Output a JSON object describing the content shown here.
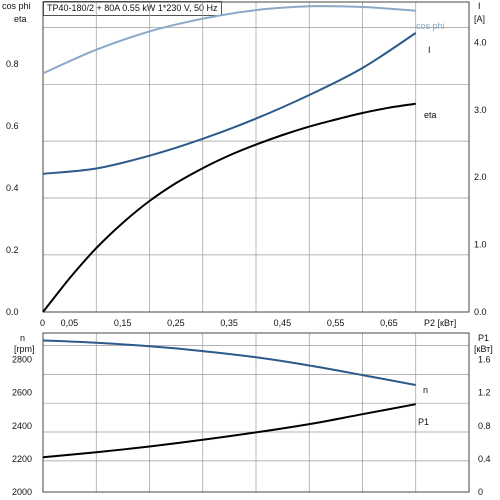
{
  "title": "TP40-180/2 + 80A   0.55 kW   1*230 V, 50 Hz",
  "colors": {
    "cos_phi": "#8aa9c8",
    "current": "#2c5a8a",
    "eta": "#000000",
    "speed": "#2c5a8a",
    "power": "#000000",
    "grid": "#9a9a9a"
  },
  "chart_data": [
    {
      "type": "line",
      "x_label": "P2 [кВт]",
      "x_ticks": [
        0,
        0.05,
        0.15,
        0.25,
        0.35,
        0.45,
        0.55,
        0.65
      ],
      "x_tick_labels": [
        "0",
        "0,05",
        "0,15",
        "0,25",
        "0,35",
        "0,45",
        "0,55",
        "0,65"
      ],
      "xlim": [
        0,
        0.8
      ],
      "left_axis": {
        "labels": [
          "cos phi",
          "eta"
        ],
        "ticks": [
          0,
          0.2,
          0.4,
          0.6,
          0.8
        ],
        "tick_labels": [
          "0.0",
          "0.2",
          "0.4",
          "0.6",
          "0.8"
        ],
        "ylim": [
          0,
          1.0
        ]
      },
      "right_axis": {
        "labels": [
          "I",
          "[A]"
        ],
        "ticks": [
          0,
          1,
          2,
          3,
          4
        ],
        "tick_labels": [
          "0.0",
          "1.0",
          "2.0",
          "3.0",
          "4.0"
        ],
        "ylim": [
          0,
          4.6
        ]
      },
      "series": [
        {
          "name": "cos phi",
          "axis": "left",
          "x": [
            0,
            0.1,
            0.2,
            0.3,
            0.4,
            0.5,
            0.6,
            0.7
          ],
          "y": [
            0.77,
            0.846,
            0.905,
            0.946,
            0.974,
            0.986,
            0.984,
            0.972
          ]
        },
        {
          "name": "I",
          "axis": "right",
          "x": [
            0,
            0.1,
            0.2,
            0.3,
            0.4,
            0.5,
            0.6,
            0.7
          ],
          "y": [
            2.05,
            2.13,
            2.32,
            2.57,
            2.87,
            3.22,
            3.62,
            4.14
          ]
        },
        {
          "name": "eta",
          "axis": "left",
          "x": [
            0,
            0.05,
            0.1,
            0.15,
            0.2,
            0.25,
            0.3,
            0.35,
            0.4,
            0.45,
            0.5,
            0.55,
            0.6,
            0.65,
            0.7
          ],
          "y": [
            0,
            0.109,
            0.206,
            0.288,
            0.358,
            0.416,
            0.464,
            0.505,
            0.54,
            0.571,
            0.598,
            0.621,
            0.642,
            0.659,
            0.672
          ]
        }
      ]
    },
    {
      "type": "line",
      "left_axis": {
        "labels": [
          "n",
          "[rpm]"
        ],
        "ticks": [
          2000,
          2200,
          2400,
          2600,
          2800
        ],
        "tick_labels": [
          "2000",
          "2200",
          "2400",
          "2600",
          "2800"
        ],
        "ylim": [
          2000,
          2960
        ]
      },
      "right_axis": {
        "labels": [
          "P1",
          "[кВт]"
        ],
        "ticks": [
          0,
          0.4,
          0.8,
          1.2,
          1.6
        ],
        "tick_labels": [
          "0",
          "0.4",
          "0.8",
          "1.2",
          "1.6"
        ],
        "ylim": [
          0,
          1.92
        ]
      },
      "xlim": [
        0,
        0.8
      ],
      "series": [
        {
          "name": "n",
          "axis": "left",
          "x": [
            0,
            0.1,
            0.2,
            0.3,
            0.4,
            0.5,
            0.6,
            0.7
          ],
          "y": [
            2915,
            2901,
            2880,
            2851,
            2813,
            2764,
            2706,
            2646
          ]
        },
        {
          "name": "P1",
          "axis": "right",
          "x": [
            0,
            0.1,
            0.2,
            0.3,
            0.4,
            0.5,
            0.6,
            0.7
          ],
          "y": [
            0.42,
            0.48,
            0.55,
            0.63,
            0.72,
            0.82,
            0.94,
            1.06
          ]
        }
      ]
    }
  ]
}
